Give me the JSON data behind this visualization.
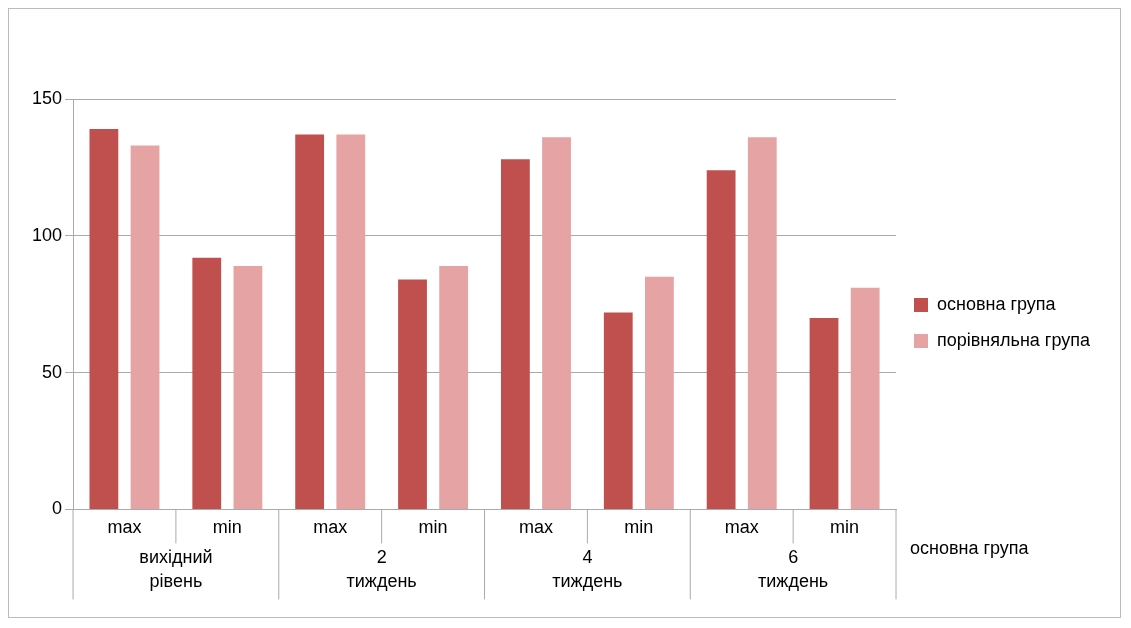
{
  "chart_data": {
    "type": "bar",
    "categories": [
      "max",
      "min",
      "max",
      "min",
      "max",
      "min",
      "max",
      "min"
    ],
    "series": [
      {
        "name": "основна група",
        "color": "#c0504d",
        "values": [
          139,
          92,
          137,
          84,
          128,
          72,
          124,
          70
        ]
      },
      {
        "name": "порівняльна група",
        "color": "#e6a3a3",
        "values": [
          133,
          89,
          137,
          89,
          136,
          85,
          136,
          81
        ]
      }
    ],
    "ylim": [
      0,
      150
    ],
    "yticks": [
      0,
      50,
      100,
      150
    ],
    "grid": "y",
    "legend": "right",
    "annotations": [
      "вихідний\nрівень",
      "2\nтиждень",
      "4\nтиждень",
      "6\nтиждень",
      "основна група"
    ]
  }
}
